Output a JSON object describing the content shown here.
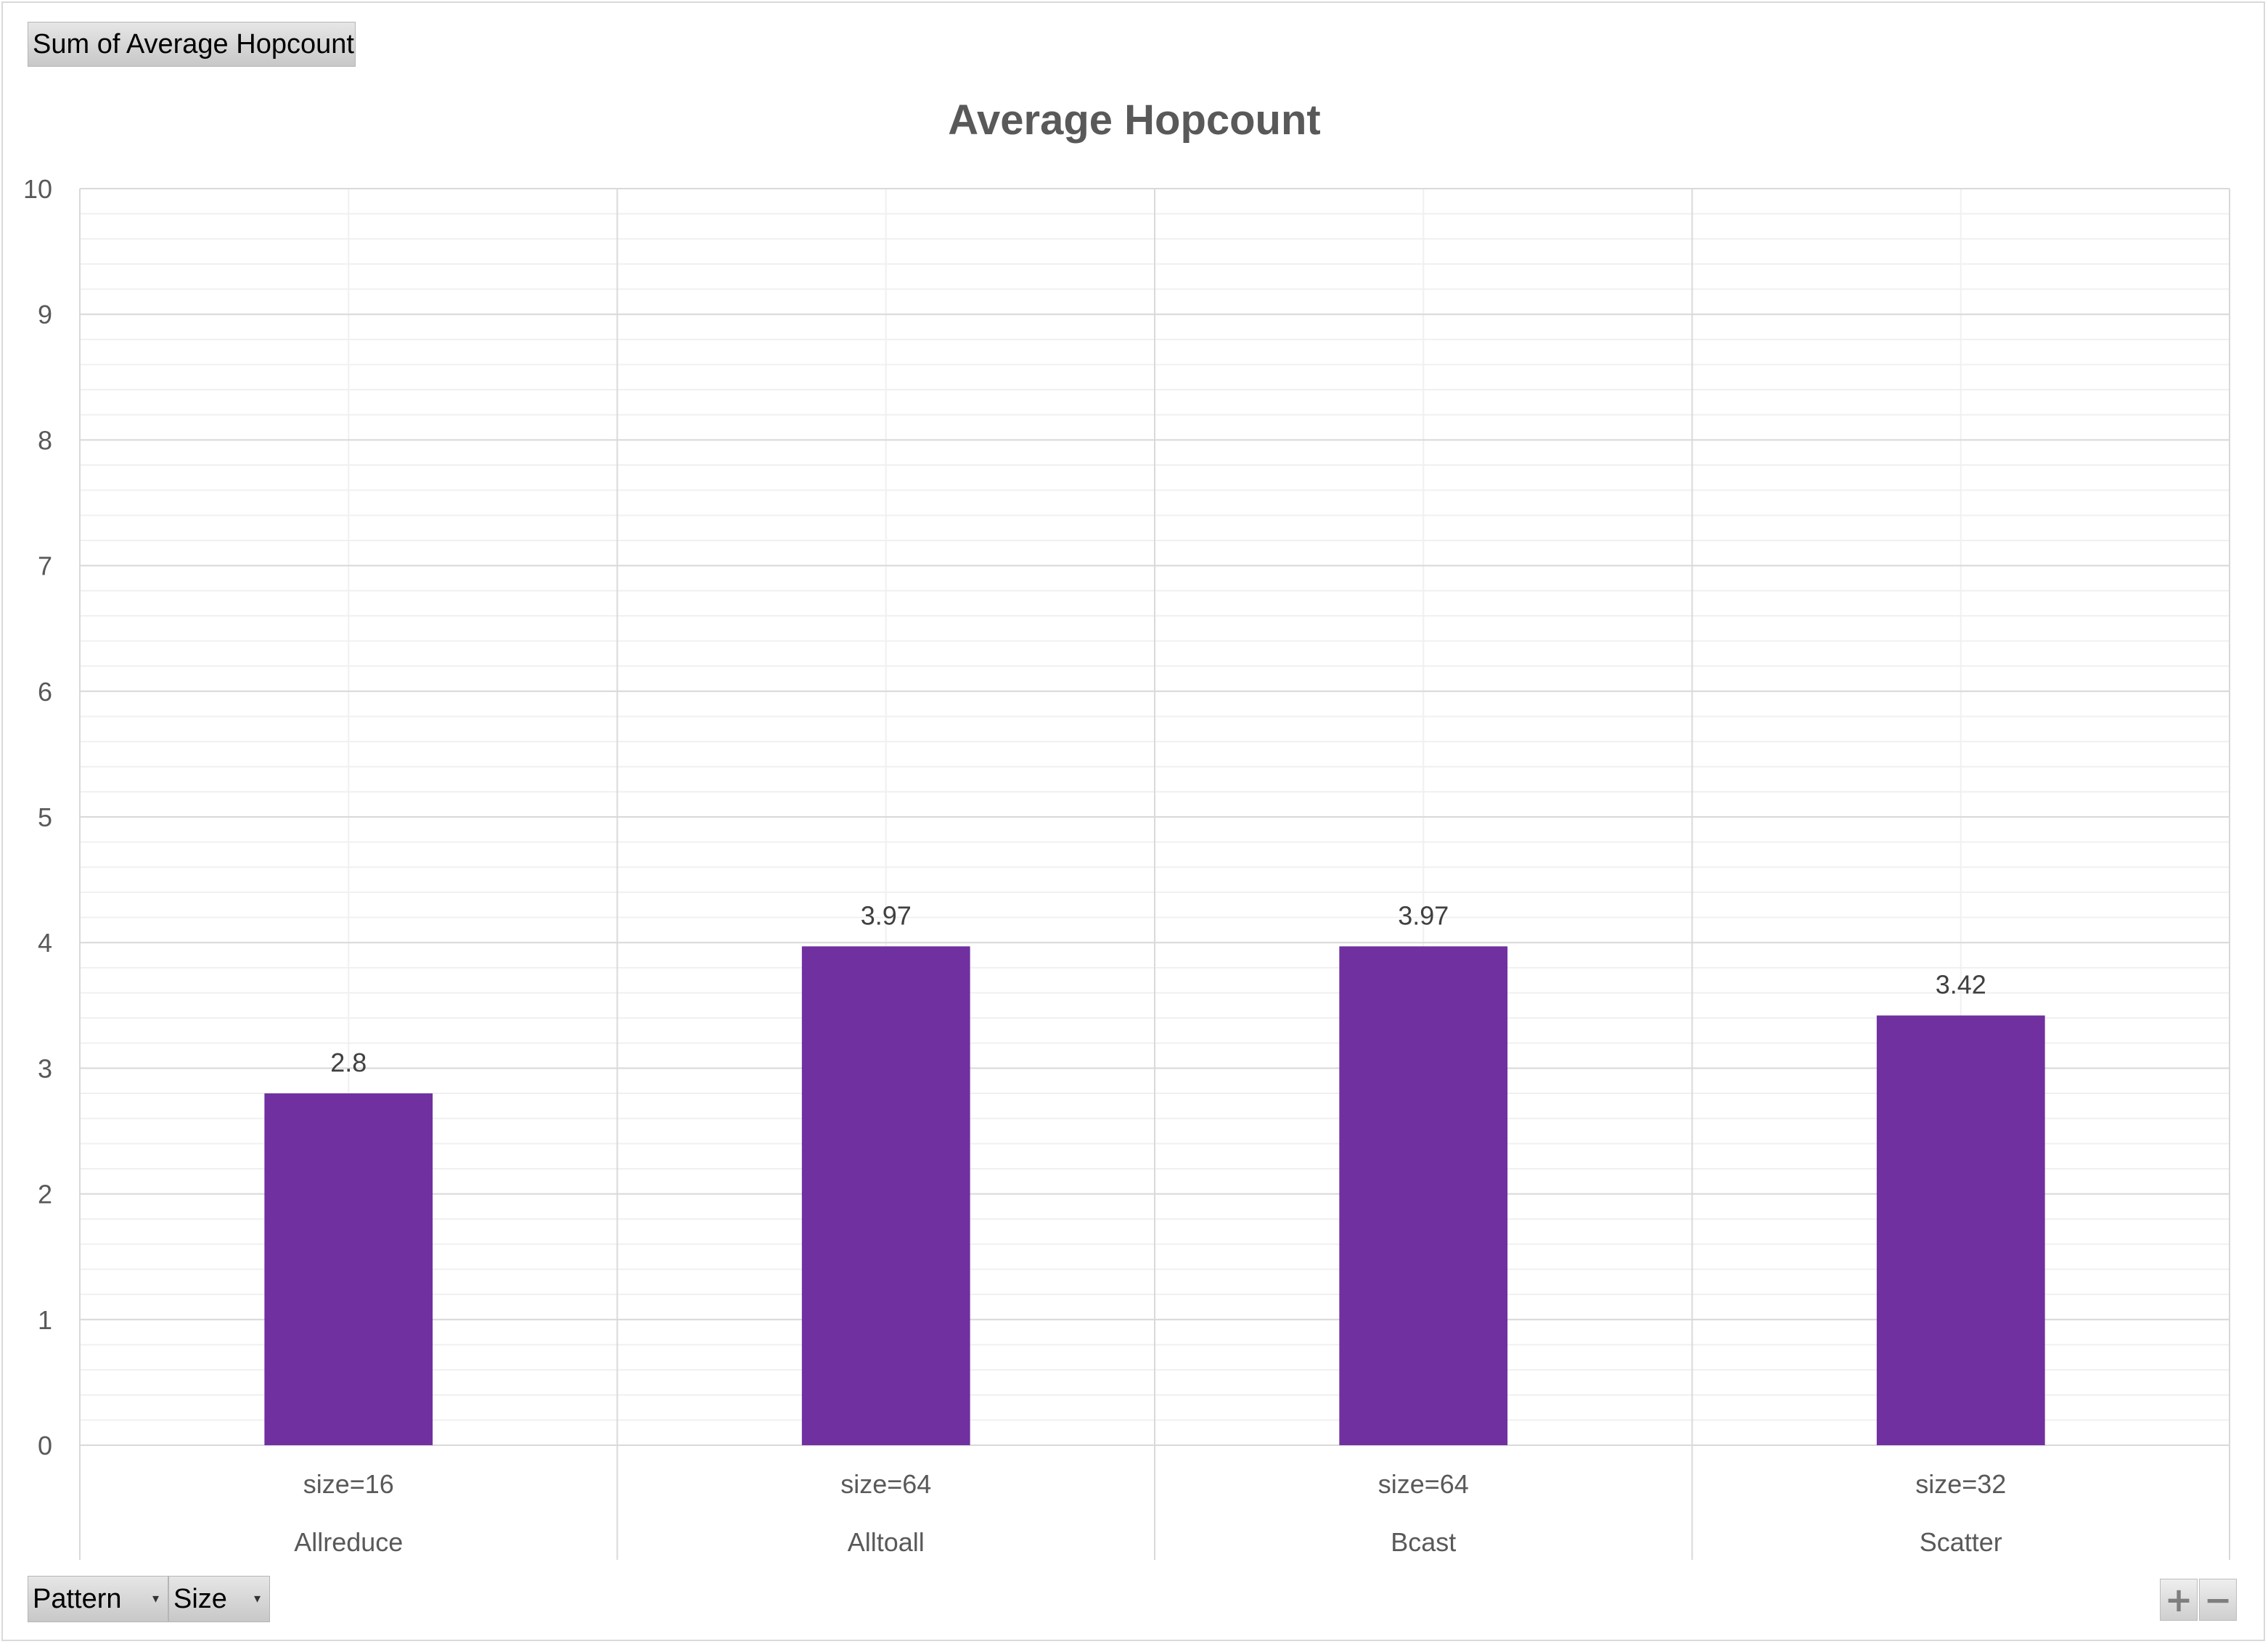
{
  "pivot": {
    "value_field": "Sum of Average Hopcount",
    "row_fields": [
      {
        "label": "Pattern"
      },
      {
        "label": "Size"
      }
    ],
    "zoom_in": "+",
    "zoom_out": "−"
  },
  "chart_data": {
    "type": "bar",
    "title": "Average Hopcount",
    "xlabel": "",
    "ylabel": "",
    "ylim": [
      0,
      10
    ],
    "yticks": [
      0,
      1,
      2,
      3,
      4,
      5,
      6,
      7,
      8,
      9,
      10
    ],
    "minor_grid_step": 0.2,
    "grid": true,
    "groups": [
      "Allreduce",
      "Alltoall",
      "Bcast",
      "Scatter"
    ],
    "categories": [
      "size=16",
      "size=64",
      "size=64",
      "size=32"
    ],
    "values": [
      2.8,
      3.97,
      3.97,
      3.42
    ],
    "bar_color": "#7030a0"
  }
}
